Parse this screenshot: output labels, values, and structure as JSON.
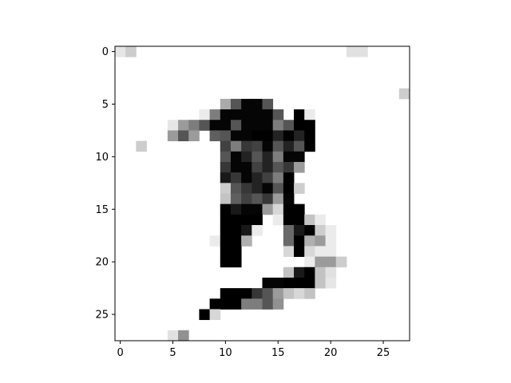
{
  "chart_data": {
    "type": "heatmap",
    "colormap": "gray_r",
    "value_range": [
      0,
      255
    ],
    "title": "",
    "xlabel": "",
    "ylabel": "",
    "xlim": [
      -0.5,
      27.5
    ],
    "ylim": [
      27.5,
      -0.5
    ],
    "x_ticks": [
      0,
      5,
      10,
      15,
      20,
      25
    ],
    "y_ticks": [
      0,
      5,
      10,
      15,
      20,
      25
    ],
    "x_tick_labels": [
      "0",
      "5",
      "10",
      "15",
      "20",
      "25"
    ],
    "y_tick_labels": [
      "0",
      "5",
      "10",
      "15",
      "20",
      "25"
    ],
    "colors": {
      "axis": "#000000",
      "background": "#ffffff"
    },
    "cells": [
      [
        0,
        0,
        25
      ],
      [
        1,
        0,
        50
      ],
      [
        22,
        0,
        30
      ],
      [
        23,
        0,
        30
      ],
      [
        27,
        4,
        50
      ],
      [
        10,
        5,
        85
      ],
      [
        11,
        5,
        170
      ],
      [
        12,
        5,
        250
      ],
      [
        13,
        5,
        250
      ],
      [
        14,
        5,
        170
      ],
      [
        8,
        6,
        20
      ],
      [
        9,
        6,
        130
      ],
      [
        10,
        6,
        250
      ],
      [
        11,
        6,
        250
      ],
      [
        12,
        6,
        250
      ],
      [
        13,
        6,
        250
      ],
      [
        14,
        6,
        250
      ],
      [
        15,
        6,
        170
      ],
      [
        17,
        6,
        255
      ],
      [
        18,
        6,
        20
      ],
      [
        5,
        7,
        25
      ],
      [
        6,
        7,
        100
      ],
      [
        7,
        7,
        130
      ],
      [
        8,
        7,
        170
      ],
      [
        9,
        7,
        250
      ],
      [
        10,
        7,
        250
      ],
      [
        11,
        7,
        170
      ],
      [
        12,
        7,
        250
      ],
      [
        13,
        7,
        250
      ],
      [
        14,
        7,
        250
      ],
      [
        15,
        7,
        130
      ],
      [
        16,
        7,
        170
      ],
      [
        17,
        7,
        255
      ],
      [
        18,
        7,
        255
      ],
      [
        5,
        8,
        100
      ],
      [
        6,
        8,
        170
      ],
      [
        7,
        8,
        100
      ],
      [
        9,
        8,
        160
      ],
      [
        10,
        8,
        170
      ],
      [
        11,
        8,
        250
      ],
      [
        12,
        8,
        250
      ],
      [
        13,
        8,
        255
      ],
      [
        14,
        8,
        255
      ],
      [
        15,
        8,
        220
      ],
      [
        16,
        8,
        255
      ],
      [
        17,
        8,
        220
      ],
      [
        18,
        8,
        255
      ],
      [
        2,
        9,
        50
      ],
      [
        10,
        9,
        190
      ],
      [
        11,
        9,
        130
      ],
      [
        12,
        9,
        200
      ],
      [
        13,
        9,
        190
      ],
      [
        14,
        9,
        250
      ],
      [
        15,
        9,
        170
      ],
      [
        16,
        9,
        220
      ],
      [
        17,
        9,
        170
      ],
      [
        18,
        9,
        255
      ],
      [
        10,
        10,
        170
      ],
      [
        11,
        10,
        250
      ],
      [
        12,
        10,
        220
      ],
      [
        13,
        10,
        170
      ],
      [
        14,
        10,
        220
      ],
      [
        15,
        10,
        130
      ],
      [
        16,
        10,
        250
      ],
      [
        17,
        10,
        250
      ],
      [
        10,
        11,
        200
      ],
      [
        11,
        11,
        250
      ],
      [
        12,
        11,
        250
      ],
      [
        13,
        11,
        190
      ],
      [
        14,
        11,
        220
      ],
      [
        15,
        11,
        170
      ],
      [
        16,
        11,
        200
      ],
      [
        17,
        11,
        100
      ],
      [
        10,
        12,
        230
      ],
      [
        11,
        12,
        200
      ],
      [
        12,
        12,
        250
      ],
      [
        13,
        12,
        220
      ],
      [
        14,
        12,
        190
      ],
      [
        15,
        12,
        130
      ],
      [
        16,
        12,
        255
      ],
      [
        10,
        13,
        50
      ],
      [
        11,
        13,
        170
      ],
      [
        12,
        13,
        200
      ],
      [
        13,
        13,
        220
      ],
      [
        14,
        13,
        250
      ],
      [
        15,
        13,
        170
      ],
      [
        16,
        13,
        255
      ],
      [
        17,
        13,
        50
      ],
      [
        10,
        14,
        60
      ],
      [
        11,
        14,
        160
      ],
      [
        12,
        14,
        190
      ],
      [
        13,
        14,
        170
      ],
      [
        14,
        14,
        200
      ],
      [
        15,
        14,
        100
      ],
      [
        16,
        14,
        250
      ],
      [
        10,
        15,
        255
      ],
      [
        11,
        15,
        230
      ],
      [
        12,
        15,
        250
      ],
      [
        13,
        15,
        250
      ],
      [
        14,
        15,
        100
      ],
      [
        15,
        15,
        40
      ],
      [
        16,
        15,
        255
      ],
      [
        17,
        15,
        255
      ],
      [
        10,
        16,
        255
      ],
      [
        11,
        16,
        255
      ],
      [
        12,
        16,
        255
      ],
      [
        13,
        16,
        255
      ],
      [
        15,
        16,
        20
      ],
      [
        16,
        16,
        255
      ],
      [
        17,
        16,
        255
      ],
      [
        18,
        16,
        60
      ],
      [
        19,
        16,
        20
      ],
      [
        10,
        17,
        255
      ],
      [
        11,
        17,
        255
      ],
      [
        12,
        17,
        230
      ],
      [
        13,
        17,
        20
      ],
      [
        16,
        17,
        150
      ],
      [
        17,
        17,
        230
      ],
      [
        18,
        17,
        255
      ],
      [
        19,
        17,
        50
      ],
      [
        20,
        17,
        20
      ],
      [
        9,
        18,
        20
      ],
      [
        10,
        18,
        255
      ],
      [
        11,
        18,
        255
      ],
      [
        12,
        18,
        80
      ],
      [
        16,
        18,
        150
      ],
      [
        17,
        18,
        255
      ],
      [
        18,
        18,
        80
      ],
      [
        19,
        18,
        100
      ],
      [
        20,
        18,
        20
      ],
      [
        10,
        19,
        255
      ],
      [
        11,
        19,
        255
      ],
      [
        16,
        19,
        40
      ],
      [
        17,
        19,
        255
      ],
      [
        18,
        19,
        40
      ],
      [
        19,
        19,
        20
      ],
      [
        20,
        19,
        20
      ],
      [
        10,
        20,
        255
      ],
      [
        11,
        20,
        255
      ],
      [
        18,
        20,
        20
      ],
      [
        19,
        20,
        100
      ],
      [
        20,
        20,
        100
      ],
      [
        21,
        20,
        50
      ],
      [
        16,
        21,
        60
      ],
      [
        17,
        21,
        230
      ],
      [
        18,
        21,
        255
      ],
      [
        19,
        21,
        60
      ],
      [
        20,
        21,
        30
      ],
      [
        14,
        22,
        250
      ],
      [
        15,
        22,
        250
      ],
      [
        16,
        22,
        255
      ],
      [
        17,
        22,
        255
      ],
      [
        18,
        22,
        255
      ],
      [
        19,
        22,
        60
      ],
      [
        20,
        22,
        25
      ],
      [
        10,
        23,
        255
      ],
      [
        11,
        23,
        255
      ],
      [
        12,
        23,
        255
      ],
      [
        13,
        23,
        200
      ],
      [
        14,
        23,
        170
      ],
      [
        15,
        23,
        100
      ],
      [
        16,
        23,
        60
      ],
      [
        17,
        23,
        40
      ],
      [
        18,
        23,
        60
      ],
      [
        9,
        24,
        255
      ],
      [
        10,
        24,
        255
      ],
      [
        11,
        24,
        255
      ],
      [
        12,
        24,
        130
      ],
      [
        13,
        24,
        130
      ],
      [
        14,
        24,
        170
      ],
      [
        15,
        24,
        110
      ],
      [
        8,
        25,
        255
      ],
      [
        9,
        25,
        40
      ],
      [
        5,
        27,
        30
      ],
      [
        6,
        27,
        110
      ]
    ]
  }
}
